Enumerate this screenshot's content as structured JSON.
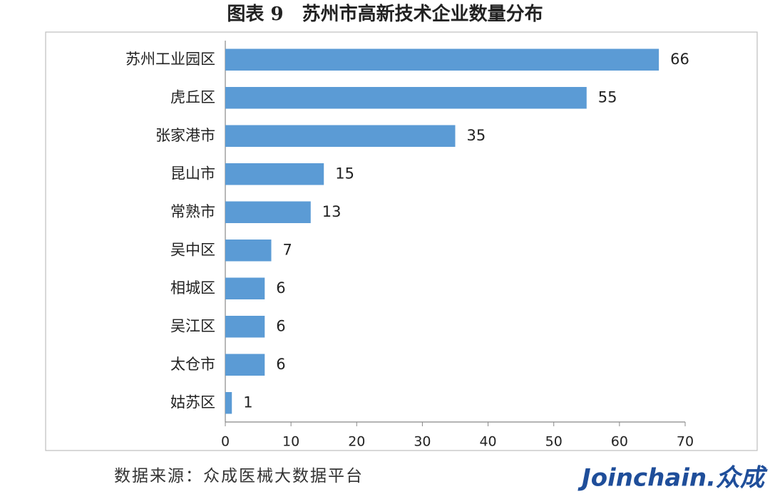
{
  "chart_data": {
    "type": "hbar",
    "title": "图表 9　苏州市高新技术企业数量分布",
    "categories": [
      "苏州工业园区",
      "虎丘区",
      "张家港市",
      "昆山市",
      "常熟市",
      "吴中区",
      "相城区",
      "吴江区",
      "太仓市",
      "姑苏区"
    ],
    "values": [
      66,
      55,
      35,
      15,
      13,
      7,
      6,
      6,
      6,
      1
    ],
    "color": "#5b9bd5",
    "xlim": [
      0,
      70
    ],
    "xticks": [
      0,
      10,
      20,
      30,
      40,
      50,
      60,
      70
    ],
    "grid": false
  },
  "footer": {
    "source": "数据来源：众成医械大数据平台",
    "logo": "Joinchain.众成"
  }
}
